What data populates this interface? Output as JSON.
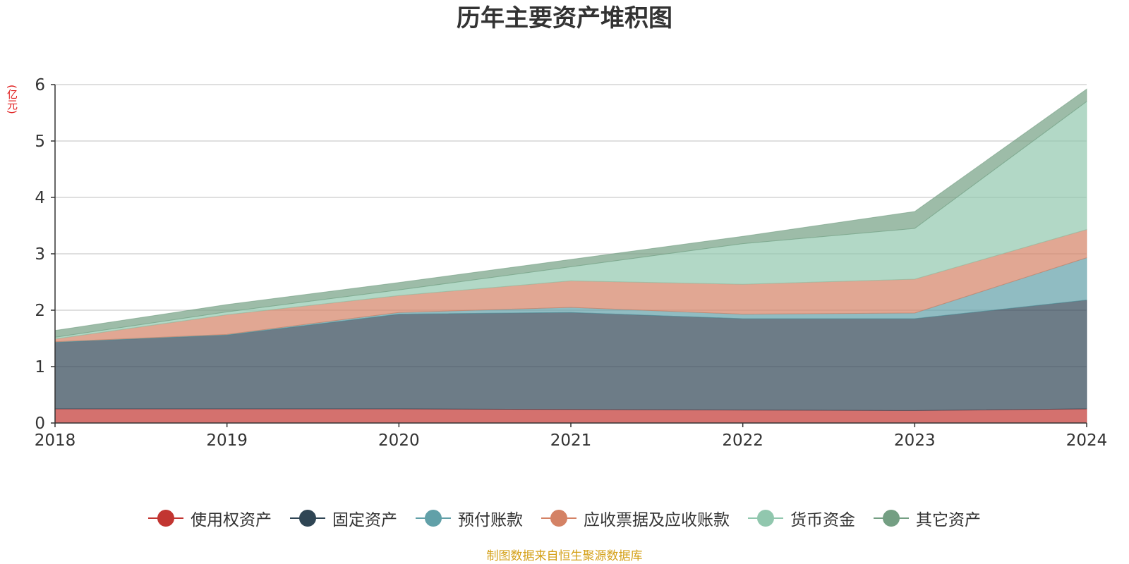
{
  "chart_data": {
    "type": "area",
    "stacked": true,
    "title": "历年主要资产堆积图",
    "ylabel": "(亿元)",
    "x": [
      "2018",
      "2019",
      "2020",
      "2021",
      "2022",
      "2023",
      "2024"
    ],
    "ylim": [
      0,
      6
    ],
    "yticks": [
      "0",
      "1",
      "2",
      "3",
      "4",
      "5",
      "6"
    ],
    "grid": true,
    "legend_position": "bottom",
    "series": [
      {
        "name": "使用权资产",
        "color": "#c23531",
        "values": [
          0.25,
          0.25,
          0.25,
          0.24,
          0.23,
          0.22,
          0.25
        ]
      },
      {
        "name": "固定资产",
        "color": "#2f4554",
        "values": [
          1.18,
          1.31,
          1.68,
          1.72,
          1.62,
          1.63,
          1.93
        ]
      },
      {
        "name": "预付账款",
        "color": "#61a0a8",
        "values": [
          0.01,
          0.01,
          0.03,
          0.09,
          0.08,
          0.1,
          0.75
        ]
      },
      {
        "name": "应收票据及应收账款",
        "color": "#d48265",
        "values": [
          0.05,
          0.35,
          0.3,
          0.47,
          0.53,
          0.6,
          0.5
        ]
      },
      {
        "name": "货币资金",
        "color": "#91c7ae",
        "values": [
          0.03,
          0.05,
          0.1,
          0.25,
          0.72,
          0.9,
          2.27
        ]
      },
      {
        "name": "其它资产",
        "color": "#749f83",
        "values": [
          0.12,
          0.13,
          0.13,
          0.13,
          0.13,
          0.3,
          0.22
        ]
      }
    ]
  },
  "source_note": "制图数据来自恒生聚源数据库"
}
